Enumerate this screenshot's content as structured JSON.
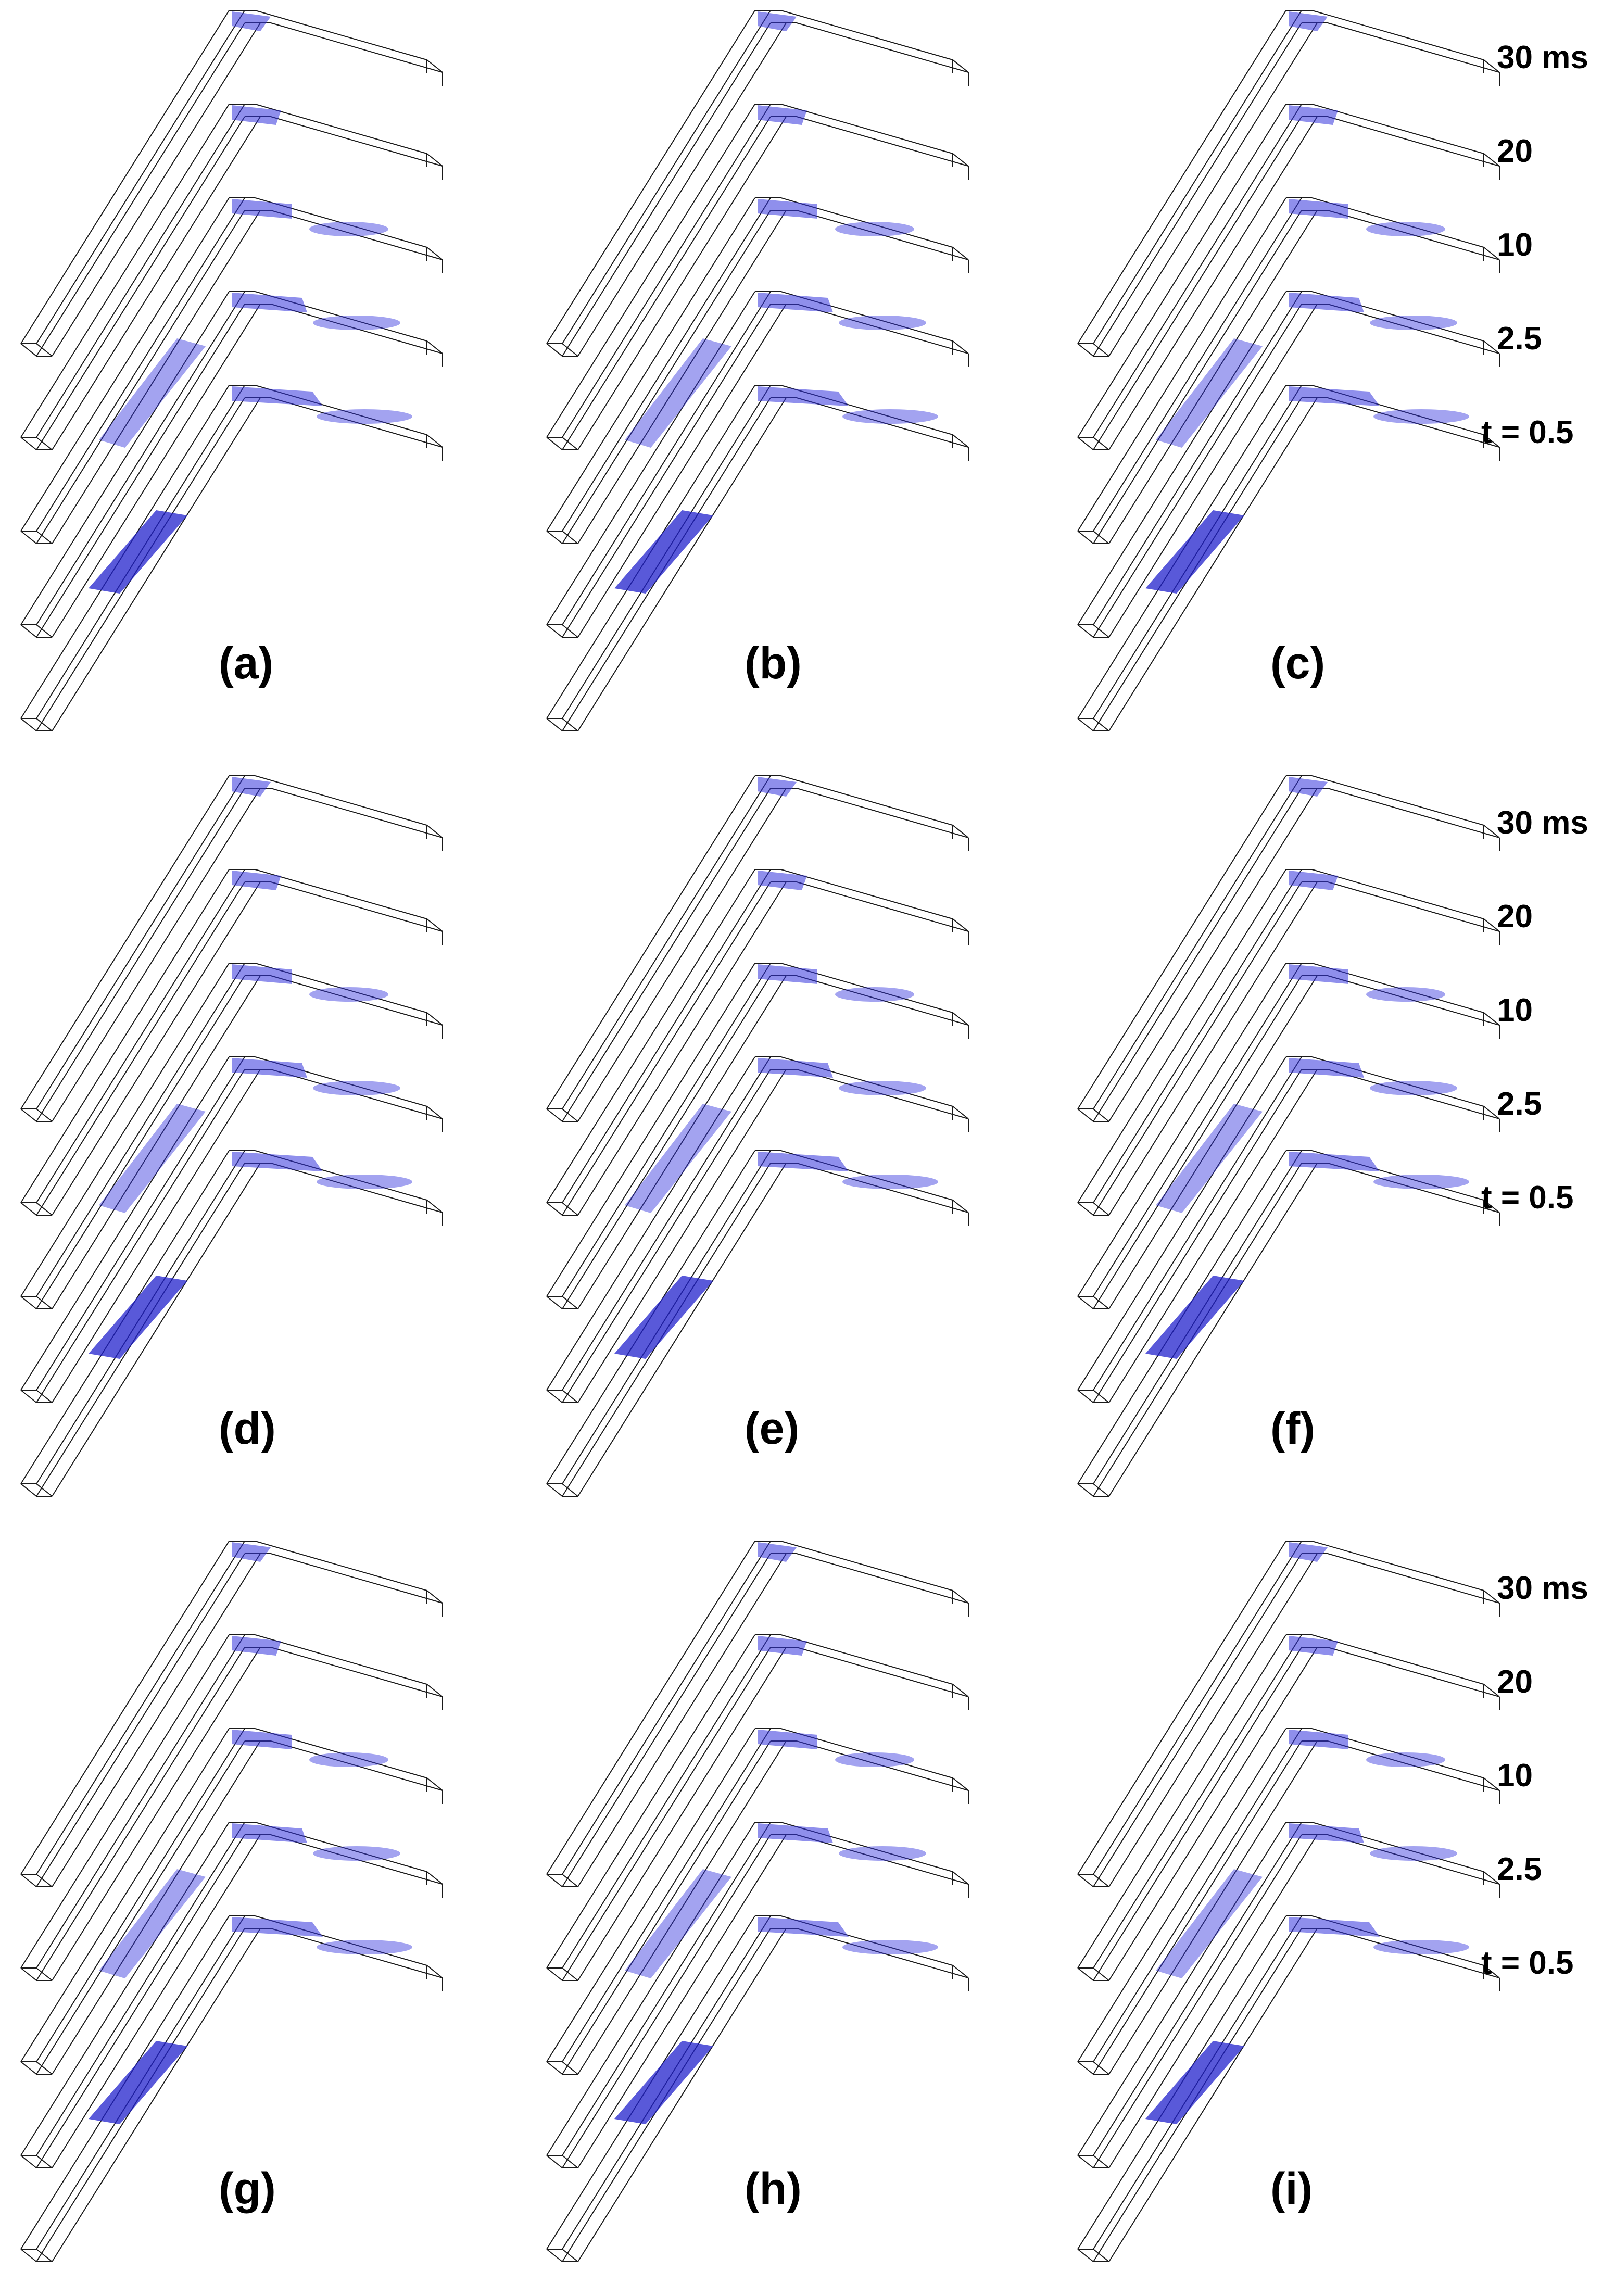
{
  "figure": {
    "time_labels": [
      "30 ms",
      "20",
      "10",
      "2.5",
      "t = 0.5"
    ],
    "panels": [
      "(a)",
      "(b)",
      "(c)",
      "(d)",
      "(e)",
      "(f)",
      "(g)",
      "(h)",
      "(i)"
    ],
    "colors": {
      "background": "#ffffff",
      "wireframe": "#1a1a1a",
      "fluid_fill": "#3333dd",
      "fluid_fill_dense": "#2222cc"
    }
  }
}
